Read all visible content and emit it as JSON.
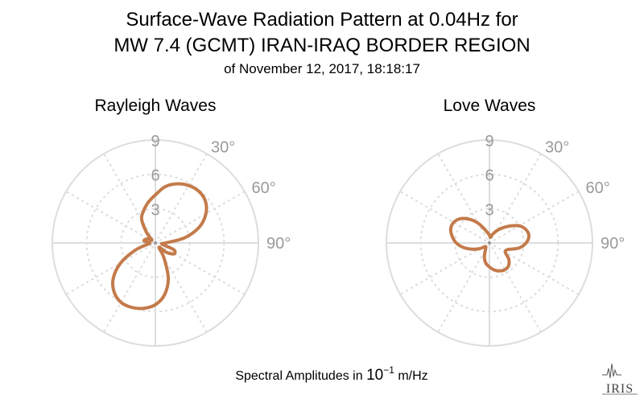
{
  "header": {
    "title_line1": "Surface-Wave Radiation Pattern at 0.04Hz for",
    "title_line2": "MW 7.4 (GCMT) IRAN-IRAQ BORDER REGION",
    "subtitle": "of November 12, 2017, 18:18:17"
  },
  "footer": {
    "label_prefix": "Spectral Amplitudes in ",
    "label_power_base": "10",
    "label_power_exp": "−1",
    "label_suffix": " m/Hz",
    "logo": "IRIS"
  },
  "colors": {
    "pattern": "#c47a4a",
    "grid": "#dddddd",
    "labels": "#9a9a9a"
  },
  "chart_data": [
    {
      "type": "polar-line",
      "title": "Rayleigh Waves",
      "r_ticks": [
        3,
        6,
        9
      ],
      "r_tick_labels": [
        "3",
        "6",
        "9"
      ],
      "rlim": [
        0,
        9
      ],
      "angle_labels": [
        "30°",
        "60°",
        "90°"
      ],
      "angle_label_values": [
        30,
        60,
        90
      ],
      "grid": true,
      "series": [
        {
          "az_deg": [
            0,
            10,
            20,
            30,
            40,
            50,
            60,
            70,
            80,
            90,
            100,
            110,
            120,
            130,
            140,
            150,
            160,
            170,
            180,
            190,
            200,
            210,
            220,
            230,
            240,
            250,
            260,
            270,
            280,
            290,
            300,
            310,
            320,
            330,
            340,
            350
          ],
          "r": [
            4.2,
            5.0,
            5.5,
            5.8,
            5.9,
            5.7,
            5.1,
            4.1,
            2.6,
            0.9,
            0.6,
            1.7,
            1.9,
            1.3,
            0.5,
            1.5,
            3.3,
            4.6,
            5.4,
            5.8,
            6.0,
            6.0,
            5.6,
            4.8,
            3.5,
            1.9,
            0.7,
            0.5,
            1.0,
            0.9,
            0.7,
            0.4,
            1.2,
            2.4,
            3.0,
            3.6
          ]
        }
      ]
    },
    {
      "type": "polar-line",
      "title": "Love Waves",
      "r_ticks": [
        3,
        6,
        9
      ],
      "r_tick_labels": [
        "3",
        "6",
        "9"
      ],
      "rlim": [
        0,
        9
      ],
      "angle_labels": [
        "30°",
        "60°",
        "90°"
      ],
      "angle_label_values": [
        30,
        60,
        90
      ],
      "grid": true,
      "series": [
        {
          "az_deg": [
            0,
            10,
            20,
            30,
            40,
            50,
            60,
            70,
            80,
            90,
            100,
            110,
            120,
            130,
            140,
            150,
            160,
            170,
            180,
            190,
            200,
            210,
            220,
            230,
            240,
            250,
            260,
            270,
            280,
            290,
            300,
            310,
            320,
            330,
            340,
            350
          ],
          "r": [
            0.7,
            0.5,
            0.8,
            1.2,
            1.7,
            2.3,
            3.0,
            3.4,
            3.5,
            3.2,
            2.6,
            1.7,
            1.6,
            2.2,
            2.6,
            2.7,
            2.6,
            2.4,
            2.1,
            1.8,
            1.3,
            0.7,
            0.5,
            0.5,
            1.0,
            1.6,
            2.3,
            2.9,
            3.3,
            3.6,
            3.6,
            3.3,
            2.7,
            2.0,
            1.3,
            0.9
          ]
        }
      ]
    }
  ]
}
